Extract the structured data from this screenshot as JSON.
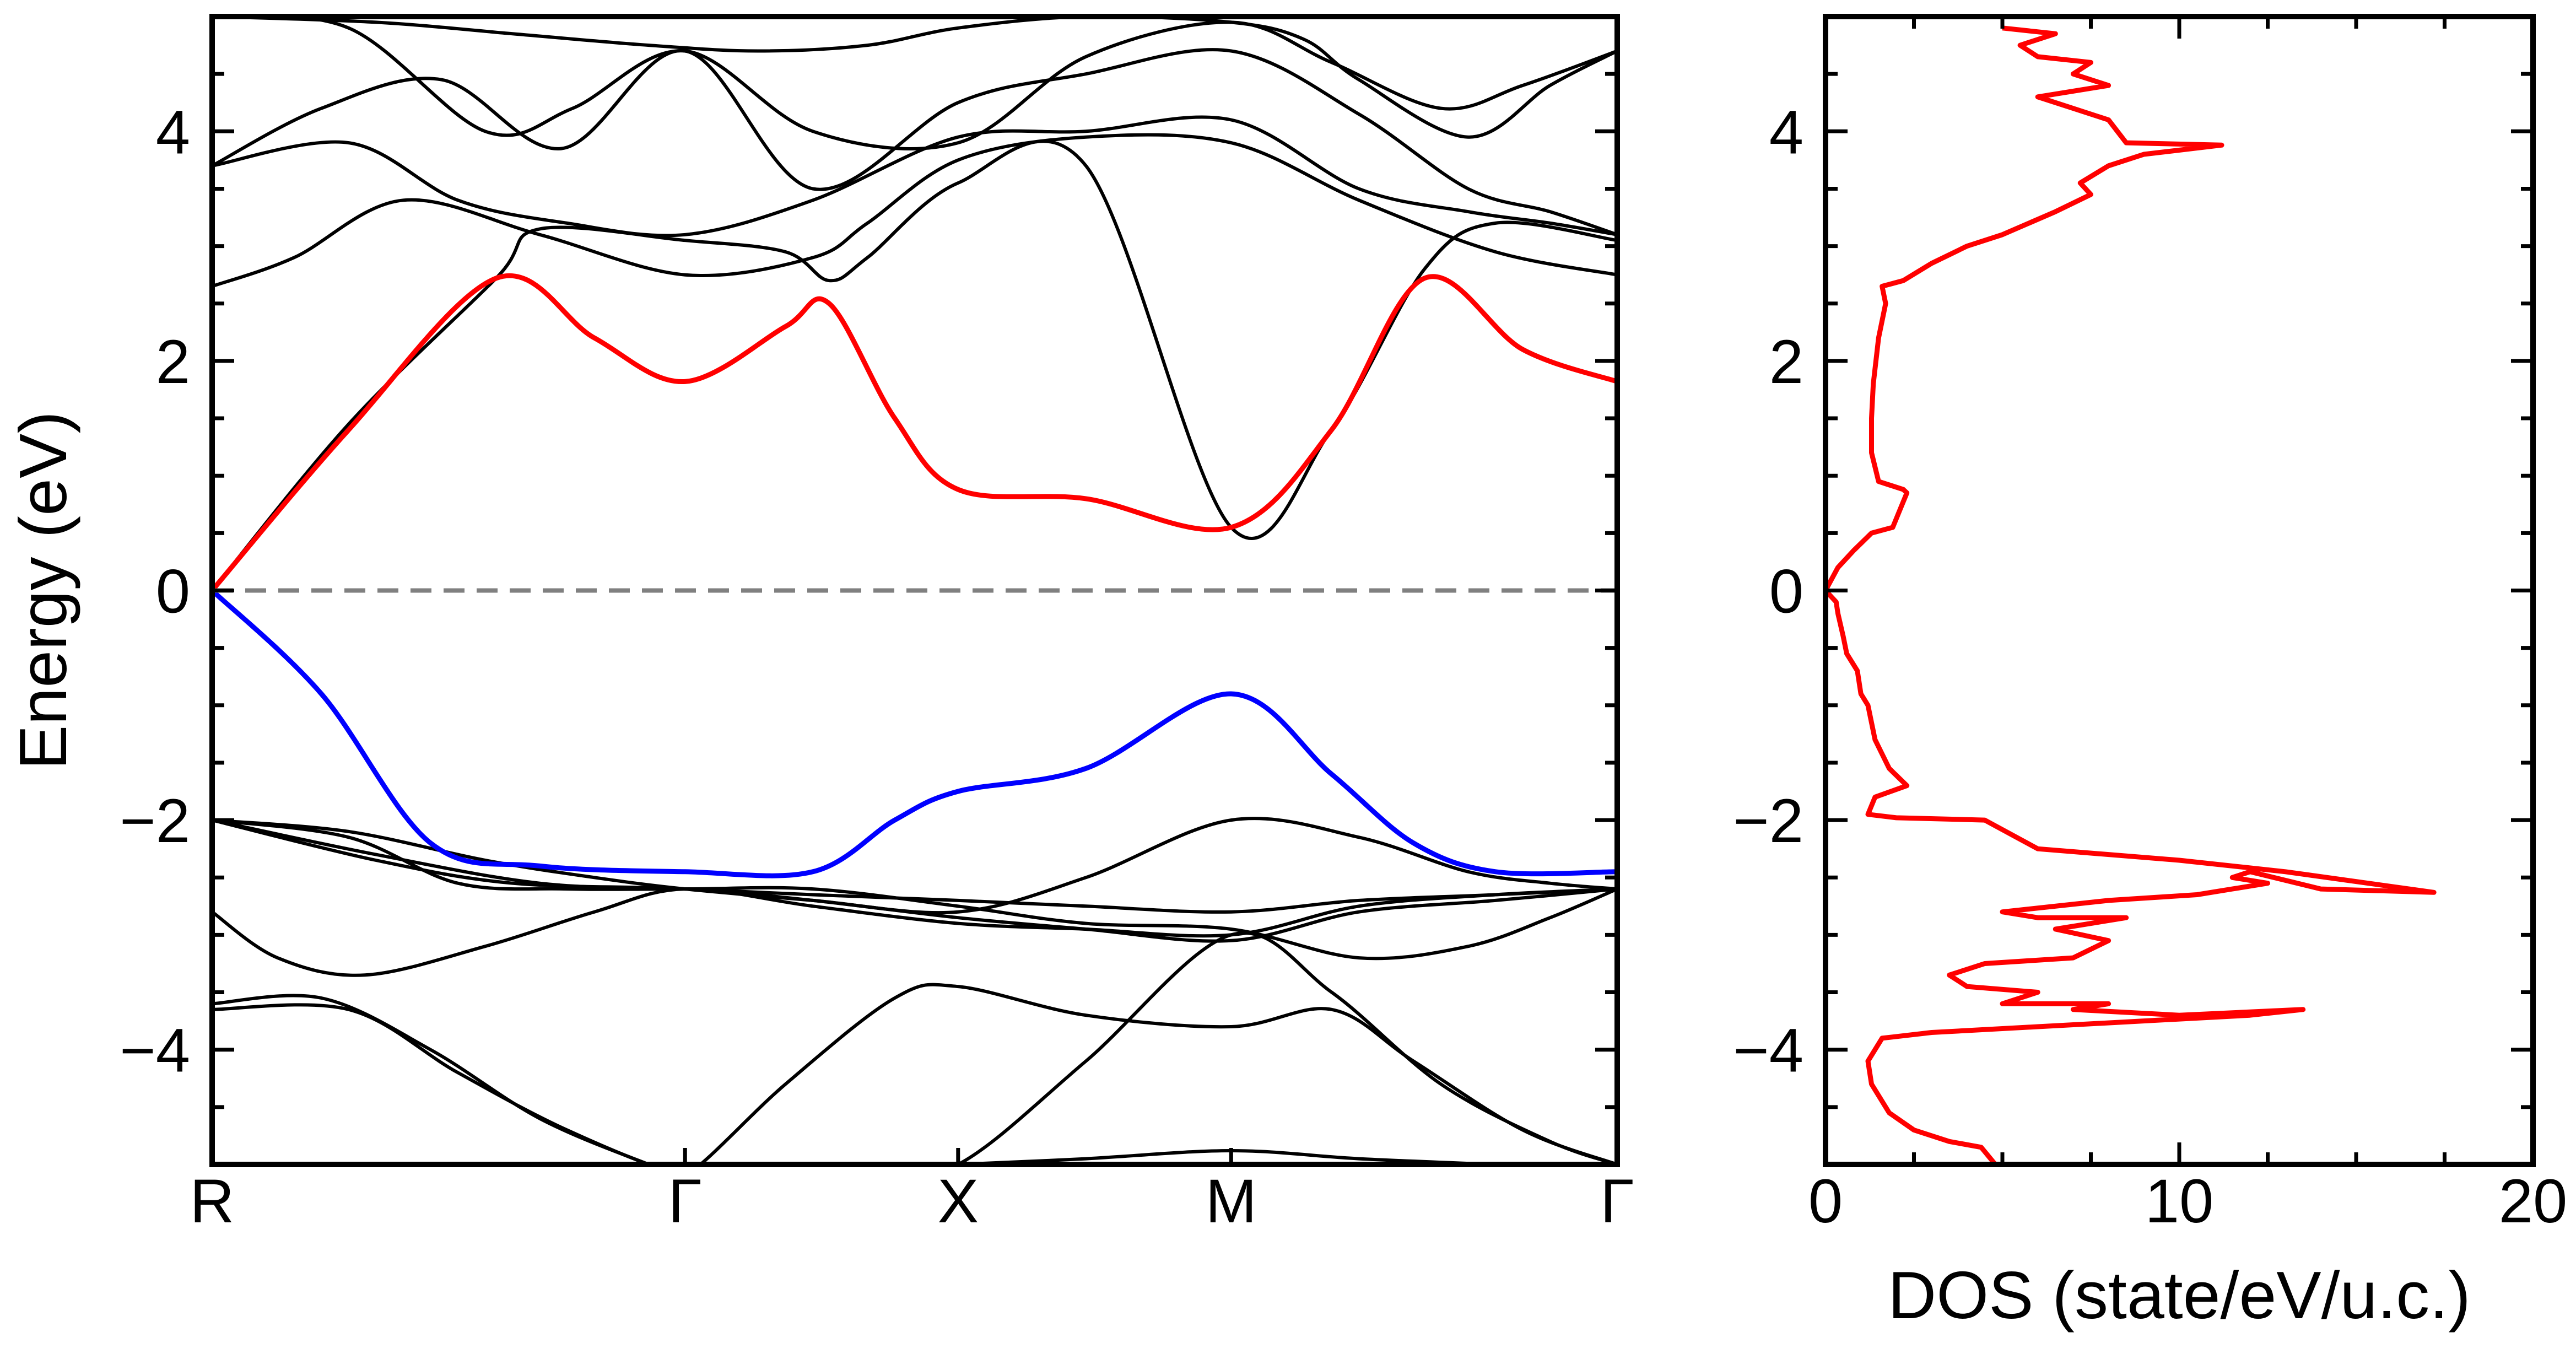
{
  "chart_data": [
    {
      "type": "line",
      "ylabel": "Energy (eV)",
      "xlabel": "",
      "ylim": [
        -5,
        5
      ],
      "yticks": [
        -4,
        -2,
        0,
        2,
        4
      ],
      "ytick_labels": [
        "−4",
        "−2",
        "0",
        "2",
        "4"
      ],
      "kpath": [
        {
          "label": "R",
          "x": 0
        },
        {
          "label": "Γ",
          "x": 0.866
        },
        {
          "label": "X",
          "x": 1.366
        },
        {
          "label": "M",
          "x": 1.866
        },
        {
          "label": "Γ",
          "x": 2.573
        }
      ],
      "xlim": [
        0,
        2.573
      ],
      "fermi_level": 0,
      "colors": {
        "bands": "#000000",
        "conduction_highlight": "#ff0000",
        "valence_highlight": "#0000ff",
        "fermi": "#808080"
      },
      "series": [
        {
          "color": "#ff0000",
          "x": [
            0,
            0.25,
            0.52,
            0.7,
            0.866,
            1.05,
            1.13,
            1.25,
            1.366,
            1.6,
            1.866,
            2.05,
            2.22,
            2.4,
            2.573
          ],
          "y": [
            0,
            1.4,
            2.72,
            2.2,
            1.82,
            2.3,
            2.5,
            1.5,
            0.88,
            0.8,
            0.55,
            1.4,
            2.72,
            2.1,
            1.82
          ]
        },
        {
          "color": "#0000ff",
          "x": [
            0,
            0.2,
            0.4,
            0.6,
            0.866,
            1.1,
            1.25,
            1.366,
            1.6,
            1.866,
            2.05,
            2.2,
            2.35,
            2.573
          ],
          "y": [
            0,
            -0.9,
            -2.2,
            -2.4,
            -2.45,
            -2.45,
            -2.0,
            -1.75,
            -1.55,
            -0.9,
            -1.6,
            -2.2,
            -2.45,
            -2.45
          ]
        },
        {
          "color": "#000000",
          "x": [
            0,
            0.25,
            0.52,
            0.6,
            0.866,
            1.05,
            1.13,
            1.2,
            1.366,
            1.6,
            1.866,
            2.05,
            2.22,
            2.35,
            2.573
          ],
          "y": [
            0,
            1.45,
            2.72,
            3.15,
            3.05,
            2.95,
            2.7,
            2.9,
            3.55,
            3.7,
            0.55,
            1.4,
            2.8,
            3.2,
            3.05
          ]
        },
        {
          "color": "#000000",
          "x": [
            0,
            0.15,
            0.35,
            0.6,
            0.866,
            1.1,
            1.2,
            1.366,
            1.6,
            1.866,
            2.1,
            2.35,
            2.573
          ],
          "y": [
            2.65,
            2.9,
            3.4,
            3.1,
            2.75,
            2.9,
            3.2,
            3.75,
            3.95,
            3.9,
            3.4,
            2.95,
            2.75
          ]
        },
        {
          "color": "#000000",
          "x": [
            0,
            0.25,
            0.45,
            0.65,
            0.866,
            1.1,
            1.366,
            1.6,
            1.866,
            2.1,
            2.3,
            2.45,
            2.573
          ],
          "y": [
            3.7,
            3.9,
            3.4,
            3.2,
            3.1,
            3.4,
            3.95,
            4.0,
            4.1,
            3.5,
            3.3,
            3.2,
            3.1
          ]
        },
        {
          "color": "#000000",
          "x": [
            0,
            0.2,
            0.42,
            0.64,
            0.866,
            1.1,
            1.366,
            1.6,
            1.866,
            2.1,
            2.3,
            2.45,
            2.573
          ],
          "y": [
            3.7,
            4.2,
            4.45,
            3.85,
            4.7,
            3.5,
            4.25,
            4.5,
            4.7,
            4.15,
            3.5,
            3.3,
            3.1
          ]
        },
        {
          "color": "#000000",
          "x": [
            0,
            0.25,
            0.5,
            0.66,
            0.866,
            1.1,
            1.366,
            1.6,
            1.866,
            2.05,
            2.25,
            2.4,
            2.573
          ],
          "y": [
            5.0,
            4.9,
            4.0,
            4.2,
            4.7,
            4.0,
            3.9,
            4.65,
            4.95,
            4.6,
            4.2,
            4.4,
            4.7
          ]
        },
        {
          "color": "#000000",
          "x": [
            0,
            0.3,
            0.55,
            0.8,
            1.0,
            1.2,
            1.366,
            1.6,
            1.866,
            2.0,
            2.1,
            2.3,
            2.45,
            2.573
          ],
          "y": [
            5.0,
            4.95,
            4.85,
            4.75,
            4.7,
            4.75,
            4.9,
            5.0,
            4.95,
            4.8,
            4.45,
            3.95,
            4.4,
            4.7
          ]
        },
        {
          "color": "#000000",
          "x": [
            0,
            0.25,
            0.5,
            0.7,
            0.866,
            1.1,
            1.366,
            1.6,
            1.866,
            2.1,
            2.3,
            2.45,
            2.573
          ],
          "y": [
            -2.0,
            -2.1,
            -2.35,
            -2.5,
            -2.6,
            -2.7,
            -2.8,
            -2.5,
            -2.0,
            -2.15,
            -2.45,
            -2.55,
            -2.6
          ]
        },
        {
          "color": "#000000",
          "x": [
            0,
            0.25,
            0.45,
            0.65,
            0.866,
            1.1,
            1.366,
            1.6,
            1.866,
            2.1,
            2.3,
            2.45,
            2.573
          ],
          "y": [
            -2.0,
            -2.15,
            -2.55,
            -2.6,
            -2.6,
            -2.6,
            -2.75,
            -2.9,
            -2.95,
            -3.2,
            -3.1,
            -2.85,
            -2.6
          ]
        },
        {
          "color": "#000000",
          "x": [
            0,
            0.3,
            0.6,
            0.866,
            1.1,
            1.366,
            1.6,
            1.866,
            2.1,
            2.35,
            2.573
          ],
          "y": [
            -2.0,
            -2.3,
            -2.55,
            -2.6,
            -2.65,
            -2.7,
            -2.75,
            -2.8,
            -2.7,
            -2.65,
            -2.6
          ]
        },
        {
          "color": "#000000",
          "x": [
            0,
            0.12,
            0.28,
            0.5,
            0.7,
            0.866,
            1.1,
            1.366,
            1.6,
            1.866,
            2.1,
            2.35,
            2.573
          ],
          "y": [
            -2.8,
            -3.2,
            -3.35,
            -3.1,
            -2.8,
            -2.6,
            -2.75,
            -2.9,
            -2.95,
            -3.0,
            -2.75,
            -2.65,
            -2.6
          ]
        },
        {
          "color": "#000000",
          "x": [
            0,
            0.3,
            0.55,
            0.866,
            1.1,
            1.366,
            1.6,
            1.866,
            2.1,
            2.35,
            2.573
          ],
          "y": [
            -2.0,
            -2.35,
            -2.55,
            -2.6,
            -2.7,
            -2.85,
            -2.95,
            -3.05,
            -2.8,
            -2.7,
            -2.6
          ]
        },
        {
          "color": "#000000",
          "x": [
            0,
            0.2,
            0.4,
            0.6,
            0.8,
            0.866,
            1.05,
            1.25,
            1.366,
            1.6,
            1.866,
            2.05,
            2.2,
            2.4,
            2.573
          ],
          "y": [
            -3.6,
            -3.55,
            -4.0,
            -4.6,
            -5.0,
            -5.1,
            -4.3,
            -3.55,
            -3.45,
            -3.7,
            -3.8,
            -3.65,
            -4.1,
            -4.7,
            -5.0
          ]
        },
        {
          "color": "#000000",
          "x": [
            0,
            0.25,
            0.45,
            0.65,
            0.866,
            1.0,
            1.2,
            1.366,
            1.6,
            1.866,
            2.05,
            2.25,
            2.45,
            2.573
          ],
          "y": [
            -3.65,
            -3.65,
            -4.2,
            -4.7,
            -5.1,
            -5.1,
            -5.1,
            -5.0,
            -4.1,
            -3.0,
            -3.5,
            -4.3,
            -4.8,
            -5.0
          ]
        },
        {
          "color": "#000000",
          "x": [
            1.366,
            1.6,
            1.866,
            2.1,
            2.35
          ],
          "y": [
            -5.0,
            -4.95,
            -4.88,
            -4.95,
            -5.0
          ]
        }
      ]
    },
    {
      "type": "line",
      "xlabel": "DOS (state/eV/u.c.)",
      "ylabel": "",
      "xlim": [
        0,
        20
      ],
      "ylim": [
        -5,
        5
      ],
      "xticks": [
        0,
        10,
        20
      ],
      "xtick_labels": [
        "0",
        "10",
        "20"
      ],
      "yticks": [
        -4,
        -2,
        0,
        2,
        4
      ],
      "ytick_labels": [
        "−4",
        "−2",
        "0",
        "2",
        "4"
      ],
      "colors": {
        "dos": "#ff0000"
      },
      "series": [
        {
          "color": "#ff0000",
          "x": [
            4.8,
            4.4,
            3.5,
            2.5,
            1.8,
            1.3,
            1.2,
            1.6,
            3.0,
            6.0,
            12.0,
            13.5,
            10.0,
            7.0,
            8.0,
            5.0,
            6.0,
            4.0,
            3.5,
            4.5,
            7.0,
            8.0,
            6.5,
            8.5,
            6.0,
            5.0,
            8.0,
            10.5,
            11.5,
            12.5,
            11.5,
            12.0,
            14.0,
            17.2,
            13.0,
            10.0,
            6.0,
            4.5,
            2.0,
            1.2,
            1.4,
            2.3,
            1.8,
            1.4,
            1.2,
            1.0,
            0.9,
            0.6,
            0.5,
            0.35,
            0.3,
            0.0,
            0.35,
            0.8,
            1.3,
            1.9,
            2.1,
            2.3,
            2.2,
            1.5,
            1.3,
            1.3,
            1.35,
            1.5,
            1.7,
            1.6,
            2.2,
            3.0,
            4.0,
            5.0,
            6.5,
            7.5,
            7.2,
            8.0,
            9.0,
            11.2,
            8.5,
            8.0,
            7.0,
            6.0,
            8.0,
            7.0,
            7.5,
            6.0,
            5.5,
            6.5,
            5.0
          ],
          "y": [
            -5.0,
            -4.85,
            -4.8,
            -4.7,
            -4.55,
            -4.3,
            -4.1,
            -3.9,
            -3.85,
            -3.8,
            -3.7,
            -3.65,
            -3.7,
            -3.65,
            -3.6,
            -3.6,
            -3.5,
            -3.45,
            -3.35,
            -3.25,
            -3.2,
            -3.05,
            -2.95,
            -2.85,
            -2.85,
            -2.8,
            -2.7,
            -2.65,
            -2.6,
            -2.55,
            -2.5,
            -2.45,
            -2.6,
            -2.63,
            -2.45,
            -2.35,
            -2.25,
            -2.0,
            -1.98,
            -1.95,
            -1.8,
            -1.7,
            -1.55,
            -1.3,
            -1.0,
            -0.9,
            -0.7,
            -0.55,
            -0.4,
            -0.2,
            -0.1,
            0.0,
            0.2,
            0.35,
            0.5,
            0.55,
            0.7,
            0.85,
            0.88,
            0.95,
            1.2,
            1.5,
            1.8,
            2.2,
            2.5,
            2.65,
            2.7,
            2.85,
            3.0,
            3.1,
            3.3,
            3.45,
            3.55,
            3.7,
            3.8,
            3.88,
            3.9,
            4.1,
            4.2,
            4.3,
            4.4,
            4.5,
            4.6,
            4.65,
            4.75,
            4.85,
            4.9
          ]
        }
      ]
    }
  ]
}
